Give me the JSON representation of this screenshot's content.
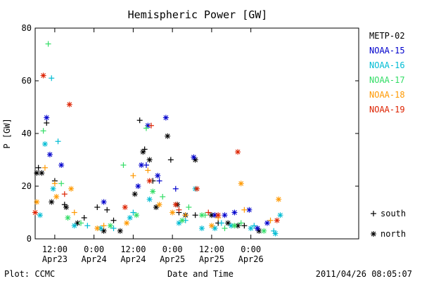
{
  "chart_data": {
    "type": "scatter",
    "title": "Hemispheric Power [GW]",
    "ylabel": "P [GW]",
    "xlabel": "Date and Time",
    "ylim": [
      0,
      80
    ],
    "yticks": [
      0,
      20,
      40,
      60,
      80
    ],
    "xlim": [
      "2011-04-22 06:00",
      "2011-04-26 09:00"
    ],
    "xticks": [
      {
        "t": "2011-04-22 12:00",
        "line1": "12:00",
        "line2": "Apr23"
      },
      {
        "t": "2011-04-23 00:00",
        "line1": "0:00",
        "line2": "Apr24"
      },
      {
        "t": "2011-04-23 12:00",
        "line1": "12:00",
        "line2": "Apr24"
      },
      {
        "t": "2011-04-24 00:00",
        "line1": "0:00",
        "line2": "Apr25"
      },
      {
        "t": "2011-04-24 12:00",
        "line1": "12:00",
        "line2": "Apr25"
      },
      {
        "t": "2011-04-25 00:00",
        "line1": "0:00",
        "line2": "Apr26"
      }
    ],
    "legend_position": "right",
    "marker_legend": [
      {
        "symbol": "+",
        "label": "south"
      },
      {
        "symbol": "*",
        "label": "north"
      }
    ],
    "series": [
      {
        "name": "METP-02",
        "color": "#000000",
        "south": [
          [
            "2011-04-22 07:00",
            27
          ],
          [
            "2011-04-22 09:30",
            44
          ],
          [
            "2011-04-22 12:00",
            22
          ],
          [
            "2011-04-22 15:00",
            13
          ],
          [
            "2011-04-22 21:00",
            8
          ],
          [
            "2011-04-23 01:00",
            12
          ],
          [
            "2011-04-23 04:00",
            11
          ],
          [
            "2011-04-23 06:00",
            7
          ],
          [
            "2011-04-23 14:00",
            45
          ],
          [
            "2011-04-23 15:30",
            34
          ],
          [
            "2011-04-23 18:00",
            22
          ],
          [
            "2011-04-23 23:30",
            30
          ],
          [
            "2011-04-24 02:00",
            10
          ],
          [
            "2011-04-24 07:00",
            9
          ],
          [
            "2011-04-24 14:00",
            6
          ],
          [
            "2011-04-24 22:00",
            5
          ],
          [
            "2011-04-25 02:00",
            4
          ]
        ],
        "north": [
          [
            "2011-04-22 06:30",
            25
          ],
          [
            "2011-04-22 08:00",
            25
          ],
          [
            "2011-04-22 11:00",
            14
          ],
          [
            "2011-04-22 15:30",
            12
          ],
          [
            "2011-04-22 19:00",
            6
          ],
          [
            "2011-04-23 03:00",
            3
          ],
          [
            "2011-04-23 08:00",
            3
          ],
          [
            "2011-04-23 12:30",
            17
          ],
          [
            "2011-04-23 15:00",
            33
          ],
          [
            "2011-04-23 17:00",
            30
          ],
          [
            "2011-04-23 19:00",
            12
          ],
          [
            "2011-04-23 22:30",
            39
          ],
          [
            "2011-04-24 01:30",
            13
          ],
          [
            "2011-04-24 04:00",
            9
          ],
          [
            "2011-04-24 07:00",
            30
          ],
          [
            "2011-04-24 12:00",
            9
          ],
          [
            "2011-04-24 17:00",
            6
          ],
          [
            "2011-04-24 20:00",
            5
          ],
          [
            "2011-04-25 02:30",
            3
          ]
        ]
      },
      {
        "name": "NOAA-15",
        "color": "#0000cc",
        "south": [
          [
            "2011-04-23 16:00",
            28
          ],
          [
            "2011-04-23 20:00",
            22
          ],
          [
            "2011-04-24 01:00",
            19
          ]
        ],
        "north": [
          [
            "2011-04-22 09:30",
            46
          ],
          [
            "2011-04-22 10:30",
            32
          ],
          [
            "2011-04-22 14:00",
            28
          ],
          [
            "2011-04-23 03:00",
            14
          ],
          [
            "2011-04-23 13:30",
            20
          ],
          [
            "2011-04-23 14:30",
            28
          ],
          [
            "2011-04-23 16:30",
            43
          ],
          [
            "2011-04-23 19:30",
            24
          ],
          [
            "2011-04-23 22:00",
            46
          ],
          [
            "2011-04-24 06:30",
            31
          ],
          [
            "2011-04-24 13:00",
            9
          ],
          [
            "2011-04-24 16:00",
            9
          ],
          [
            "2011-04-24 19:00",
            10
          ],
          [
            "2011-04-24 23:30",
            11
          ],
          [
            "2011-04-25 02:00",
            4
          ],
          [
            "2011-04-25 05:00",
            6
          ]
        ]
      },
      {
        "name": "NOAA-16",
        "color": "#00bcd4",
        "south": [
          [
            "2011-04-22 11:00",
            61
          ],
          [
            "2011-04-22 13:00",
            37
          ],
          [
            "2011-04-22 22:00",
            5
          ],
          [
            "2011-04-23 06:00",
            4
          ],
          [
            "2011-04-23 12:00",
            10
          ],
          [
            "2011-04-24 04:00",
            7
          ],
          [
            "2011-04-24 15:00",
            6
          ],
          [
            "2011-04-25 01:00",
            5
          ],
          [
            "2011-04-25 07:00",
            3
          ]
        ],
        "north": [
          [
            "2011-04-22 07:30",
            9
          ],
          [
            "2011-04-22 09:00",
            36
          ],
          [
            "2011-04-22 11:30",
            19
          ],
          [
            "2011-04-22 18:00",
            5
          ],
          [
            "2011-04-23 02:00",
            4
          ],
          [
            "2011-04-23 11:00",
            8
          ],
          [
            "2011-04-23 17:00",
            15
          ],
          [
            "2011-04-24 02:00",
            6
          ],
          [
            "2011-04-24 07:00",
            19
          ],
          [
            "2011-04-24 09:00",
            4
          ],
          [
            "2011-04-24 13:00",
            4
          ],
          [
            "2011-04-24 18:00",
            5
          ],
          [
            "2011-04-25 00:00",
            4
          ],
          [
            "2011-04-25 07:30",
            2
          ],
          [
            "2011-04-25 09:00",
            9
          ]
        ]
      },
      {
        "name": "NOAA-17",
        "color": "#33dd66",
        "south": [
          [
            "2011-04-22 08:30",
            41
          ],
          [
            "2011-04-22 10:00",
            74
          ],
          [
            "2011-04-22 14:00",
            21
          ],
          [
            "2011-04-22 20:00",
            6
          ],
          [
            "2011-04-23 09:00",
            28
          ],
          [
            "2011-04-23 16:00",
            42
          ],
          [
            "2011-04-23 21:00",
            16
          ],
          [
            "2011-04-24 05:00",
            12
          ],
          [
            "2011-04-24 10:00",
            9
          ],
          [
            "2011-04-24 16:00",
            4
          ],
          [
            "2011-04-24 21:00",
            6
          ]
        ],
        "north": [
          [
            "2011-04-22 16:00",
            8
          ],
          [
            "2011-04-23 05:00",
            5
          ],
          [
            "2011-04-23 13:00",
            9
          ],
          [
            "2011-04-23 18:00",
            18
          ],
          [
            "2011-04-24 03:00",
            7
          ],
          [
            "2011-04-24 09:00",
            9
          ],
          [
            "2011-04-24 19:00",
            5
          ],
          [
            "2011-04-25 04:00",
            3
          ]
        ]
      },
      {
        "name": "NOAA-18",
        "color": "#ff9900",
        "south": [
          [
            "2011-04-22 09:00",
            27
          ],
          [
            "2011-04-22 12:00",
            21
          ],
          [
            "2011-04-22 18:00",
            10
          ],
          [
            "2011-04-23 03:00",
            5
          ],
          [
            "2011-04-23 12:00",
            24
          ],
          [
            "2011-04-23 16:30",
            26
          ],
          [
            "2011-04-24 04:00",
            9
          ],
          [
            "2011-04-24 14:00",
            8
          ],
          [
            "2011-04-24 22:00",
            11
          ],
          [
            "2011-04-25 06:00",
            7
          ]
        ],
        "north": [
          [
            "2011-04-22 06:30",
            14
          ],
          [
            "2011-04-22 12:30",
            16
          ],
          [
            "2011-04-22 17:00",
            19
          ],
          [
            "2011-04-23 01:00",
            4
          ],
          [
            "2011-04-23 10:00",
            6
          ],
          [
            "2011-04-23 20:00",
            13
          ],
          [
            "2011-04-24 00:00",
            10
          ],
          [
            "2011-04-24 12:00",
            5
          ],
          [
            "2011-04-24 21:00",
            21
          ],
          [
            "2011-04-25 08:30",
            15
          ]
        ]
      },
      {
        "name": "NOAA-19",
        "color": "#dd2200",
        "south": [
          [
            "2011-04-22 15:00",
            17
          ],
          [
            "2011-04-23 17:30",
            43
          ],
          [
            "2011-04-24 02:00",
            11
          ],
          [
            "2011-04-24 11:00",
            10
          ]
        ],
        "north": [
          [
            "2011-04-22 06:00",
            10
          ],
          [
            "2011-04-22 08:30",
            62
          ],
          [
            "2011-04-22 16:30",
            51
          ],
          [
            "2011-04-23 09:30",
            12
          ],
          [
            "2011-04-23 17:00",
            22
          ],
          [
            "2011-04-24 01:00",
            13
          ],
          [
            "2011-04-24 07:30",
            19
          ],
          [
            "2011-04-24 14:00",
            9
          ],
          [
            "2011-04-24 20:00",
            33
          ],
          [
            "2011-04-25 08:00",
            7
          ]
        ]
      }
    ],
    "footer_left": "Plot: CCMC",
    "footer_right": "2011/04/26 08:05:07"
  }
}
